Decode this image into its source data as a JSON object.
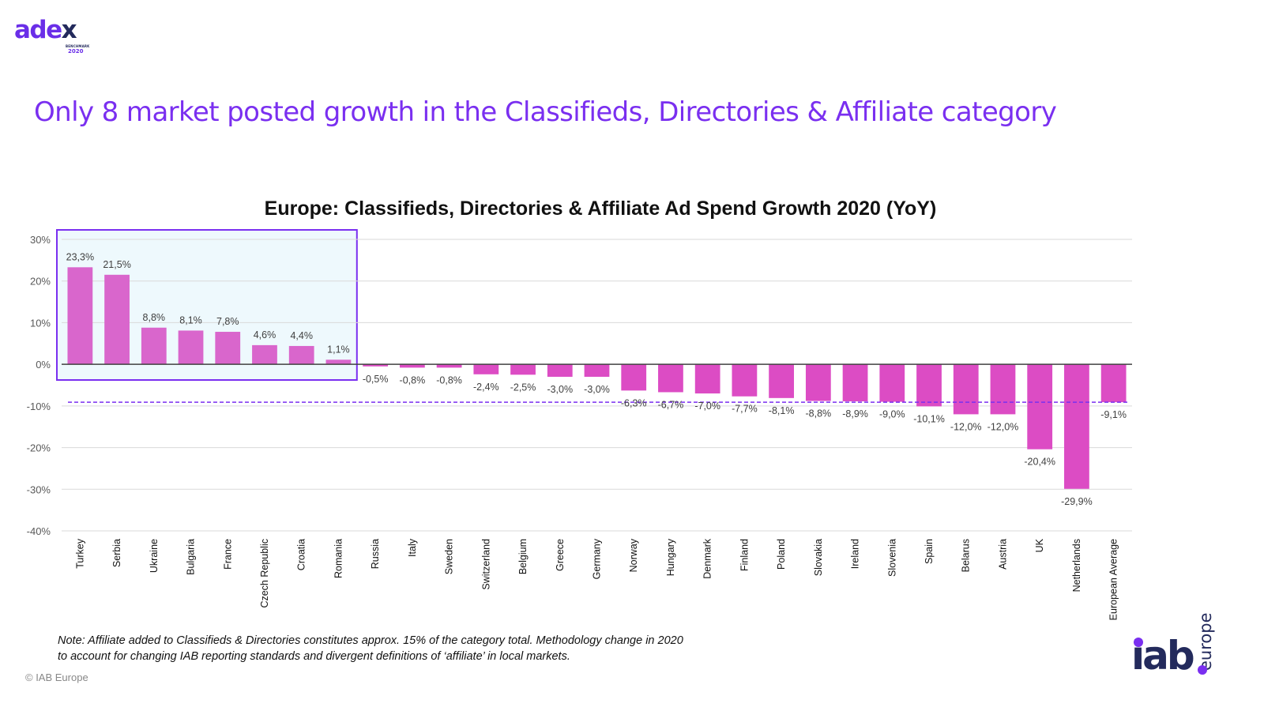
{
  "logo": {
    "word_main": "ade",
    "word_x": "x",
    "benchmark": "BENCHMARK",
    "year": "2020"
  },
  "headline": "Only 8 market posted growth in the Classifieds, Directories & Affiliate category",
  "note_lines": [
    "Note: Affiliate added to Classifieds & Directories constitutes approx. 15% of the category total. Methodology change in 2020",
    "to account for changing IAB reporting standards and divergent definitions of ‘affiliate’ in local markets."
  ],
  "copyright": "© IAB Europe",
  "iab_logo": {
    "main": "iab",
    "sub": "europe"
  },
  "colors": {
    "accent": "#7a2ff0",
    "bar": "#d966cc",
    "bar_negative": "#dc4cc4",
    "highlight_fill": "#eef9fd",
    "average_line": "#7a2ff0",
    "navy": "#232a5c"
  },
  "chart_data": {
    "type": "bar",
    "title": "Europe: Classifieds, Directories & Affiliate Ad Spend Growth 2020 (YoY)",
    "xlabel": "",
    "ylabel": "",
    "ylim": [
      -40,
      30
    ],
    "yticks": [
      30,
      20,
      10,
      0,
      -10,
      -20,
      -30,
      -40
    ],
    "ytick_labels": [
      "30%",
      "20%",
      "10%",
      "0%",
      "-10%",
      "-20%",
      "-30%",
      "-40%"
    ],
    "grid": true,
    "legend": "none",
    "categories": [
      "Turkey",
      "Serbia",
      "Ukraine",
      "Bulgaria",
      "France",
      "Czech Republic",
      "Croatia",
      "Romania",
      "Russia",
      "Italy",
      "Sweden",
      "Switzerland",
      "Belgium",
      "Greece",
      "Germany",
      "Norway",
      "Hungary",
      "Denmark",
      "Finland",
      "Poland",
      "Slovakia",
      "Ireland",
      "Slovenia",
      "Spain",
      "Belarus",
      "Austria",
      "UK",
      "Netherlands",
      "European Average"
    ],
    "values": [
      23.3,
      21.5,
      8.8,
      8.1,
      7.8,
      4.6,
      4.4,
      1.1,
      -0.5,
      -0.8,
      -0.8,
      -2.4,
      -2.5,
      -3.0,
      -3.0,
      -6.3,
      -6.7,
      -7.0,
      -7.7,
      -8.1,
      -8.8,
      -8.9,
      -9.0,
      -10.1,
      -12.0,
      -12.0,
      -20.4,
      -29.9,
      -9.1
    ],
    "data_labels": [
      "23,3%",
      "21,5%",
      "8,8%",
      "8,1%",
      "7,8%",
      "4,6%",
      "4,4%",
      "1,1%",
      "-0,5%",
      "-0,8%",
      "-0,8%",
      "-2,4%",
      "-2,5%",
      "-3,0%",
      "-3,0%",
      "-6,3%",
      "-6,7%",
      "-7,0%",
      "-7,7%",
      "-8,1%",
      "-8,8%",
      "-8,9%",
      "-9,0%",
      "-10,1%",
      "-12,0%",
      "-12,0%",
      "-20,4%",
      "-29,9%",
      "-9,1%"
    ],
    "reference_line": {
      "label": "European Average",
      "value": -9.1,
      "style": "dashed"
    },
    "highlight_box": {
      "from_category": "Turkey",
      "to_category": "Romania",
      "count": 8
    }
  }
}
